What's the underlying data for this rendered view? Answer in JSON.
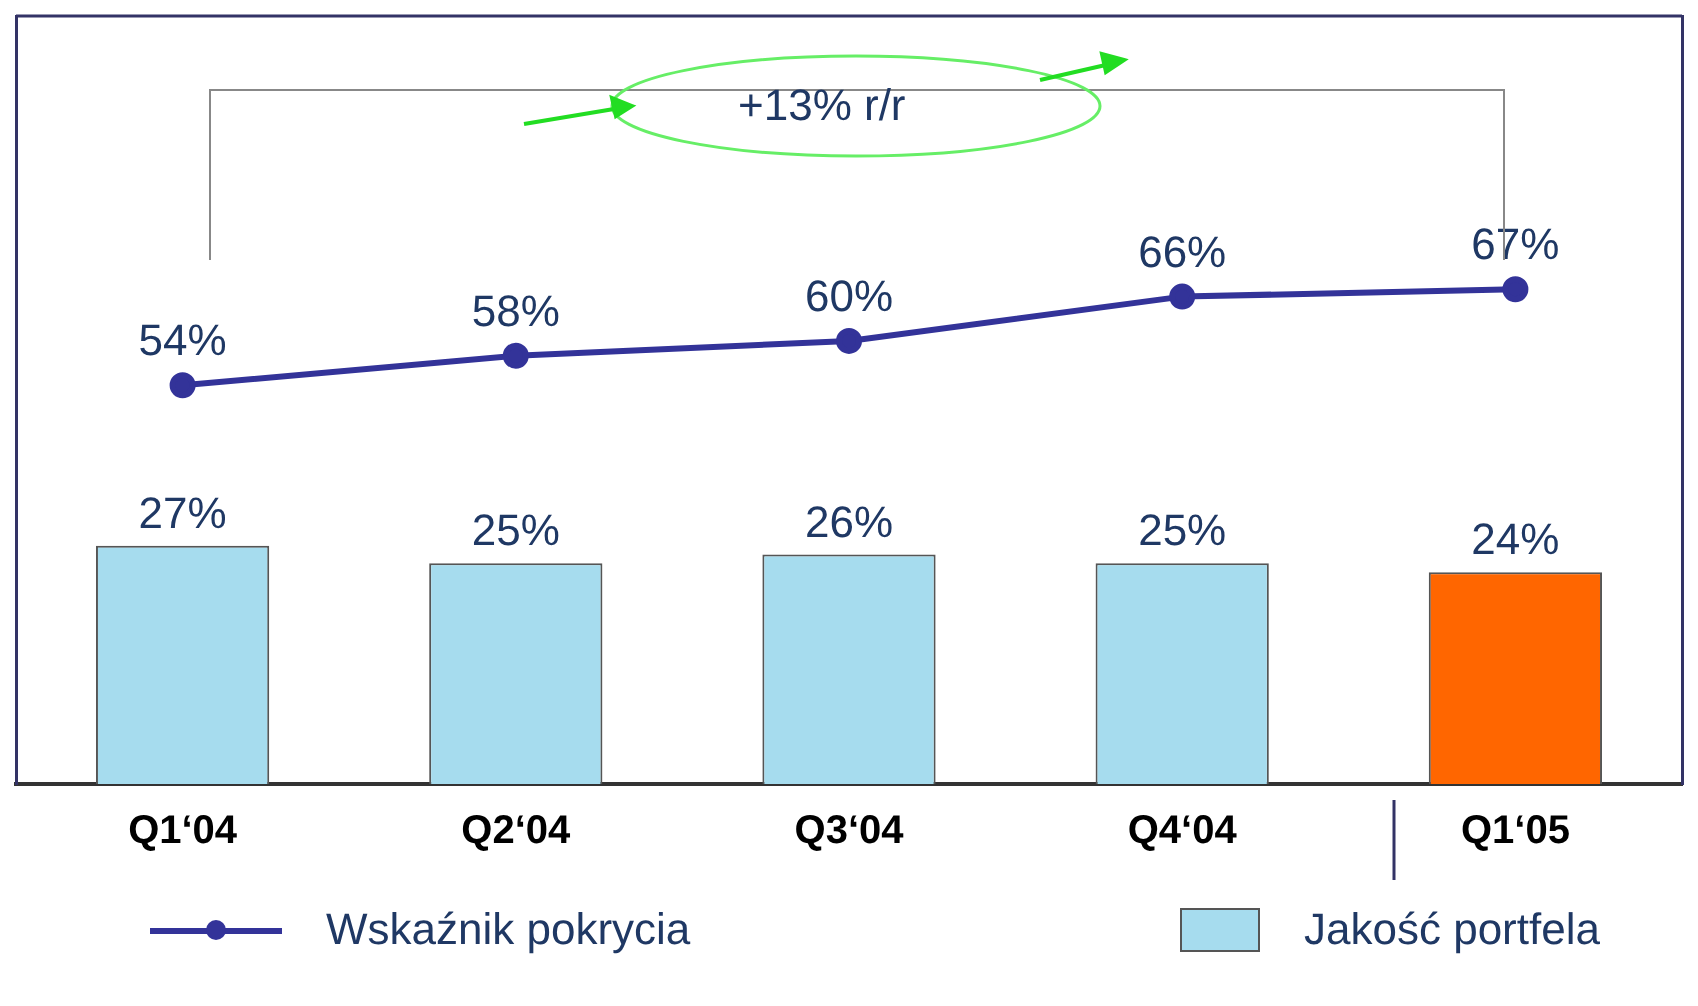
{
  "chart_data": {
    "type": "bar",
    "categories": [
      "Q1‘04",
      "Q2‘04",
      "Q3‘04",
      "Q4‘04",
      "Q1‘05"
    ],
    "series": [
      {
        "name": "Wskaźnik pokrycia",
        "type": "line",
        "axis": "y2",
        "color": "#333399",
        "values": [
          54,
          58,
          60,
          66,
          67
        ],
        "value_labels": [
          "54%",
          "58%",
          "60%",
          "66%",
          "67%"
        ]
      },
      {
        "name": "Jakość portfela",
        "color": "#a6dcee",
        "colors": [
          "#a6dcee",
          "#a6dcee",
          "#a6dcee",
          "#a6dcee",
          "#ff6600"
        ],
        "values": [
          27,
          25,
          26,
          25,
          24
        ],
        "value_labels": [
          "27%",
          "25%",
          "26%",
          "25%",
          "24%"
        ]
      }
    ],
    "ylim": [
      0,
      87
    ],
    "y2lim": [
      0,
      104
    ],
    "marker": "circle",
    "legend": "bottom",
    "grid": false,
    "annotations": [
      "+13% r/r"
    ]
  }
}
